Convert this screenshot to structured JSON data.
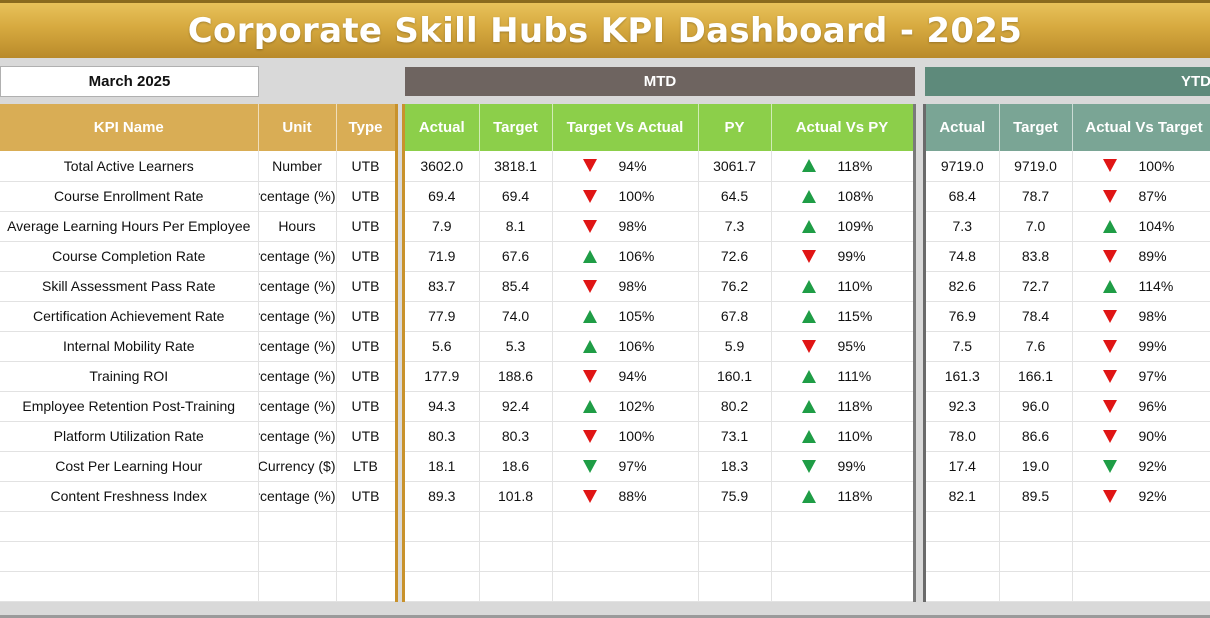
{
  "title": "Corporate Skill Hubs KPI Dashboard - 2025",
  "month": "March 2025",
  "sections": {
    "mtd": "MTD",
    "ytd": "YTD"
  },
  "columns": {
    "kpi": [
      "KPI Name",
      "Unit",
      "Type"
    ],
    "mtd": [
      "Actual",
      "Target",
      "Target Vs Actual",
      "PY",
      "Actual Vs PY"
    ],
    "ytd": [
      "Actual",
      "Target",
      "Actual Vs Target"
    ]
  },
  "colors": {
    "title_gold": "#d6a93f",
    "kpi_header": "#d9ad55",
    "mtd_header": "#8ccf4a",
    "ytd_header": "#7aa595",
    "mtd_bar": "#6e6460",
    "ytd_bar": "#5e8a7b",
    "up": "#1f9d46",
    "down": "#e01515"
  },
  "rows": [
    {
      "name": "Total Active Learners",
      "unit": "Number",
      "type": "UTB",
      "mtd_actual": "3602.0",
      "mtd_target": "3818.1",
      "tva_icon": "down-red",
      "tva": "94%",
      "py": "3061.7",
      "avp_icon": "up",
      "avp": "118%",
      "ytd_actual": "9719.0",
      "ytd_target": "9719.0",
      "avt_icon": "down-red",
      "avt": "100%"
    },
    {
      "name": "Course Enrollment Rate",
      "unit": "Percentage (%)",
      "type": "UTB",
      "mtd_actual": "69.4",
      "mtd_target": "69.4",
      "tva_icon": "down-red",
      "tva": "100%",
      "py": "64.5",
      "avp_icon": "up",
      "avp": "108%",
      "ytd_actual": "68.4",
      "ytd_target": "78.7",
      "avt_icon": "down-red",
      "avt": "87%"
    },
    {
      "name": "Average Learning Hours Per Employee",
      "unit": "Hours",
      "type": "UTB",
      "mtd_actual": "7.9",
      "mtd_target": "8.1",
      "tva_icon": "down-red",
      "tva": "98%",
      "py": "7.3",
      "avp_icon": "up",
      "avp": "109%",
      "ytd_actual": "7.3",
      "ytd_target": "7.0",
      "avt_icon": "up",
      "avt": "104%"
    },
    {
      "name": "Course Completion Rate",
      "unit": "Percentage (%)",
      "type": "UTB",
      "mtd_actual": "71.9",
      "mtd_target": "67.6",
      "tva_icon": "up",
      "tva": "106%",
      "py": "72.6",
      "avp_icon": "down-red",
      "avp": "99%",
      "ytd_actual": "74.8",
      "ytd_target": "83.8",
      "avt_icon": "down-red",
      "avt": "89%"
    },
    {
      "name": "Skill Assessment Pass Rate",
      "unit": "Percentage (%)",
      "type": "UTB",
      "mtd_actual": "83.7",
      "mtd_target": "85.4",
      "tva_icon": "down-red",
      "tva": "98%",
      "py": "76.2",
      "avp_icon": "up",
      "avp": "110%",
      "ytd_actual": "82.6",
      "ytd_target": "72.7",
      "avt_icon": "up",
      "avt": "114%"
    },
    {
      "name": "Certification Achievement Rate",
      "unit": "Percentage (%)",
      "type": "UTB",
      "mtd_actual": "77.9",
      "mtd_target": "74.0",
      "tva_icon": "up",
      "tva": "105%",
      "py": "67.8",
      "avp_icon": "up",
      "avp": "115%",
      "ytd_actual": "76.9",
      "ytd_target": "78.4",
      "avt_icon": "down-red",
      "avt": "98%"
    },
    {
      "name": "Internal Mobility Rate",
      "unit": "Percentage (%)",
      "type": "UTB",
      "mtd_actual": "5.6",
      "mtd_target": "5.3",
      "tva_icon": "up",
      "tva": "106%",
      "py": "5.9",
      "avp_icon": "down-red",
      "avp": "95%",
      "ytd_actual": "7.5",
      "ytd_target": "7.6",
      "avt_icon": "down-red",
      "avt": "99%"
    },
    {
      "name": "Training ROI",
      "unit": "Percentage (%)",
      "type": "UTB",
      "mtd_actual": "177.9",
      "mtd_target": "188.6",
      "tva_icon": "down-red",
      "tva": "94%",
      "py": "160.1",
      "avp_icon": "up",
      "avp": "111%",
      "ytd_actual": "161.3",
      "ytd_target": "166.1",
      "avt_icon": "down-red",
      "avt": "97%"
    },
    {
      "name": "Employee Retention Post-Training",
      "unit": "Percentage (%)",
      "type": "UTB",
      "mtd_actual": "94.3",
      "mtd_target": "92.4",
      "tva_icon": "up",
      "tva": "102%",
      "py": "80.2",
      "avp_icon": "up",
      "avp": "118%",
      "ytd_actual": "92.3",
      "ytd_target": "96.0",
      "avt_icon": "down-red",
      "avt": "96%"
    },
    {
      "name": "Platform Utilization Rate",
      "unit": "Percentage (%)",
      "type": "UTB",
      "mtd_actual": "80.3",
      "mtd_target": "80.3",
      "tva_icon": "down-red",
      "tva": "100%",
      "py": "73.1",
      "avp_icon": "up",
      "avp": "110%",
      "ytd_actual": "78.0",
      "ytd_target": "86.6",
      "avt_icon": "down-red",
      "avt": "90%"
    },
    {
      "name": "Cost Per Learning Hour",
      "unit": "Currency ($)",
      "type": "LTB",
      "mtd_actual": "18.1",
      "mtd_target": "18.6",
      "tva_icon": "down-green",
      "tva": "97%",
      "py": "18.3",
      "avp_icon": "down-green",
      "avp": "99%",
      "ytd_actual": "17.4",
      "ytd_target": "19.0",
      "avt_icon": "down-green",
      "avt": "92%"
    },
    {
      "name": "Content Freshness Index",
      "unit": "Percentage (%)",
      "type": "UTB",
      "mtd_actual": "89.3",
      "mtd_target": "101.8",
      "tva_icon": "down-red",
      "tva": "88%",
      "py": "75.9",
      "avp_icon": "up",
      "avp": "118%",
      "ytd_actual": "82.1",
      "ytd_target": "89.5",
      "avt_icon": "down-red",
      "avt": "92%"
    }
  ],
  "empty_rows": 3
}
